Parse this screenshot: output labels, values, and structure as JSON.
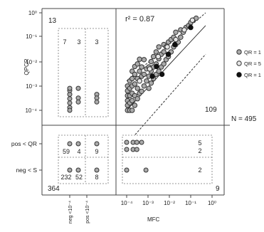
{
  "chart_data": {
    "type": "scatter",
    "x_axis": {
      "label": "MFC",
      "scale": "log",
      "range": [
        1e-05,
        1
      ],
      "ticks": [
        {
          "value": 0.0001,
          "label": "10⁻⁴"
        },
        {
          "value": 0.001,
          "label": "10⁻³"
        },
        {
          "value": 0.01,
          "label": "10⁻²"
        },
        {
          "value": 0.1,
          "label": "10⁻¹"
        },
        {
          "value": 1,
          "label": "10⁰"
        }
      ],
      "left_panel_ticks": [
        {
          "value": "neg",
          "label": "neg <10⁻⁴"
        },
        {
          "value": "pos",
          "label": "pos <10⁻⁴"
        }
      ]
    },
    "y_axis": {
      "label": "QPCR",
      "scale": "log",
      "range": [
        1e-05,
        1
      ],
      "ticks": [
        {
          "value": 1,
          "label": "10⁰"
        },
        {
          "value": 0.1,
          "label": "10⁻¹"
        },
        {
          "value": 0.01,
          "label": "10⁻²"
        },
        {
          "value": 0.001,
          "label": "10⁻³"
        },
        {
          "value": 0.0001,
          "label": "10⁻⁴"
        }
      ],
      "bottom_panel_ticks": [
        {
          "value": "pos",
          "label": "pos < QR"
        },
        {
          "value": "neg",
          "label": "neg < S"
        }
      ]
    },
    "annotations": {
      "r2": "r² = 0.87",
      "n_total": "N = 495",
      "q_upper_left": "13",
      "q_upper_right": "109",
      "q_lower_left": "364",
      "q_lower_right": "9",
      "counts_ul": [
        "7",
        "3",
        "3"
      ],
      "counts_ll_pos": [
        "59",
        "4",
        "9"
      ],
      "counts_ll_neg": [
        "232",
        "52",
        "8"
      ],
      "counts_lr": [
        "5",
        "2",
        "2"
      ]
    },
    "legend": {
      "placement": "right",
      "entries": [
        {
          "label": "QR = 1",
          "color": "#aaaaaa"
        },
        {
          "label": "QR = 5",
          "color": "#e6e6e6"
        },
        {
          "label": "QR = 1",
          "color": "#111111"
        }
      ]
    },
    "regression": {
      "x": [
        0.0001,
        0.5
      ],
      "y": [
        0.0001,
        0.3
      ]
    },
    "band_upper": {
      "x": [
        0.0001,
        0.5
      ],
      "y": [
        0.0016,
        1
      ]
    },
    "band_lower": {
      "x": [
        0.00025,
        0.5
      ],
      "y": [
        1e-05,
        0.02
      ]
    },
    "series": [
      {
        "kind": "gray",
        "x": [
          0.00011,
          0.00011,
          0.00011,
          0.00011,
          0.00011,
          0.00011,
          0.00014,
          0.00014,
          0.00014,
          0.00014,
          0.00014,
          0.00018,
          0.00018,
          0.00018,
          0.00018,
          0.00018,
          0.00018,
          0.00024,
          0.00024,
          0.00024,
          0.00024,
          0.00024,
          0.00032,
          0.00032,
          0.00032,
          0.00032,
          0.0004,
          0.0004,
          0.0004,
          0.0004,
          0.0005,
          0.0005,
          0.0005,
          0.00065,
          0.00065,
          0.00065,
          0.00085,
          0.00085,
          0.0011,
          0.0011,
          0.0011,
          0.0014,
          0.0014,
          0.0014,
          0.0018,
          0.0018,
          0.0018,
          0.0024,
          0.0024,
          0.0024,
          0.0032,
          0.0032,
          0.0032,
          0.0042,
          0.0042,
          0.0055,
          0.0055,
          0.0055,
          0.007,
          0.007,
          0.009,
          0.009,
          0.012,
          0.012,
          0.016,
          0.016,
          0.02,
          0.02,
          0.026,
          0.034,
          0.034,
          0.045,
          0.06,
          0.08,
          0.1,
          0.13,
          0.18
        ],
        "y": [
          0.0001,
          0.00016,
          0.00025,
          0.0004,
          0.00063,
          0.001,
          0.0001,
          0.0002,
          0.0004,
          0.0008,
          0.0016,
          0.0001,
          0.00025,
          0.0005,
          0.001,
          0.002,
          0.004,
          0.00016,
          0.0004,
          0.0012,
          0.003,
          0.0063,
          0.0003,
          0.0008,
          0.002,
          0.008,
          0.0005,
          0.0016,
          0.004,
          0.0125,
          0.0006,
          0.0025,
          0.006,
          0.001,
          0.003,
          0.012,
          0.0016,
          0.005,
          0.0008,
          0.0025,
          0.006,
          0.0013,
          0.004,
          0.01,
          0.002,
          0.006,
          0.016,
          0.003,
          0.008,
          0.025,
          0.004,
          0.013,
          0.04,
          0.006,
          0.02,
          0.008,
          0.025,
          0.05,
          0.012,
          0.04,
          0.016,
          0.063,
          0.025,
          0.08,
          0.04,
          0.1,
          0.05,
          0.16,
          0.063,
          0.1,
          0.2,
          0.16,
          0.25,
          0.3,
          0.4,
          0.5,
          0.6
        ]
      },
      {
        "kind": "light",
        "x": [
          0.0004,
          0.0012,
          0.003,
          0.008,
          0.02,
          0.05,
          0.12
        ],
        "y": [
          0.0016,
          0.005,
          0.016,
          0.04,
          0.08,
          0.2,
          0.5
        ]
      },
      {
        "kind": "dark",
        "x": [
          0.0016,
          0.0025,
          0.0045,
          0.009,
          0.018,
          0.1
        ],
        "y": [
          0.0025,
          0.0063,
          0.003,
          0.02,
          0.05,
          0.25
        ]
      }
    ],
    "ul_points": [
      {
        "col": 0,
        "y": 0.00045
      },
      {
        "col": 0,
        "y": 0.0003
      },
      {
        "col": 0,
        "y": 0.0002
      },
      {
        "col": 0,
        "y": 0.00013
      },
      {
        "col": 0,
        "y": 0.0001
      },
      {
        "col": 0,
        "y": 0.00065
      },
      {
        "col": 0,
        "y": 0.0008
      },
      {
        "col": 1,
        "y": 0.0008
      },
      {
        "col": 1,
        "y": 0.00032
      },
      {
        "col": 1,
        "y": 0.00022
      },
      {
        "col": 2,
        "y": 0.00045
      },
      {
        "col": 2,
        "y": 0.00032
      },
      {
        "col": 2,
        "y": 0.00022
      }
    ],
    "ll_points": [
      {
        "col": 0,
        "row": "pos"
      },
      {
        "col": 1,
        "row": "pos"
      },
      {
        "col": 2,
        "row": "pos"
      },
      {
        "col": 0,
        "row": "neg"
      },
      {
        "col": 1,
        "row": "neg"
      },
      {
        "col": 2,
        "row": "neg"
      }
    ],
    "lr_points": [
      {
        "x": 0.0001,
        "row": "pos",
        "offset": -1
      },
      {
        "x": 0.0002,
        "row": "pos",
        "offset": -1
      },
      {
        "x": 0.0003,
        "row": "pos",
        "offset": -1
      },
      {
        "x": 0.0005,
        "row": "pos",
        "offset": -1
      },
      {
        "x": 0.0001,
        "row": "pos",
        "offset": 1
      },
      {
        "x": 0.0002,
        "row": "pos",
        "offset": 1
      },
      {
        "x": 0.0003,
        "row": "pos",
        "offset": 1
      },
      {
        "x": 0.0001,
        "row": "neg",
        "offset": 0
      },
      {
        "x": 0.0008,
        "row": "neg",
        "offset": 0
      }
    ]
  }
}
